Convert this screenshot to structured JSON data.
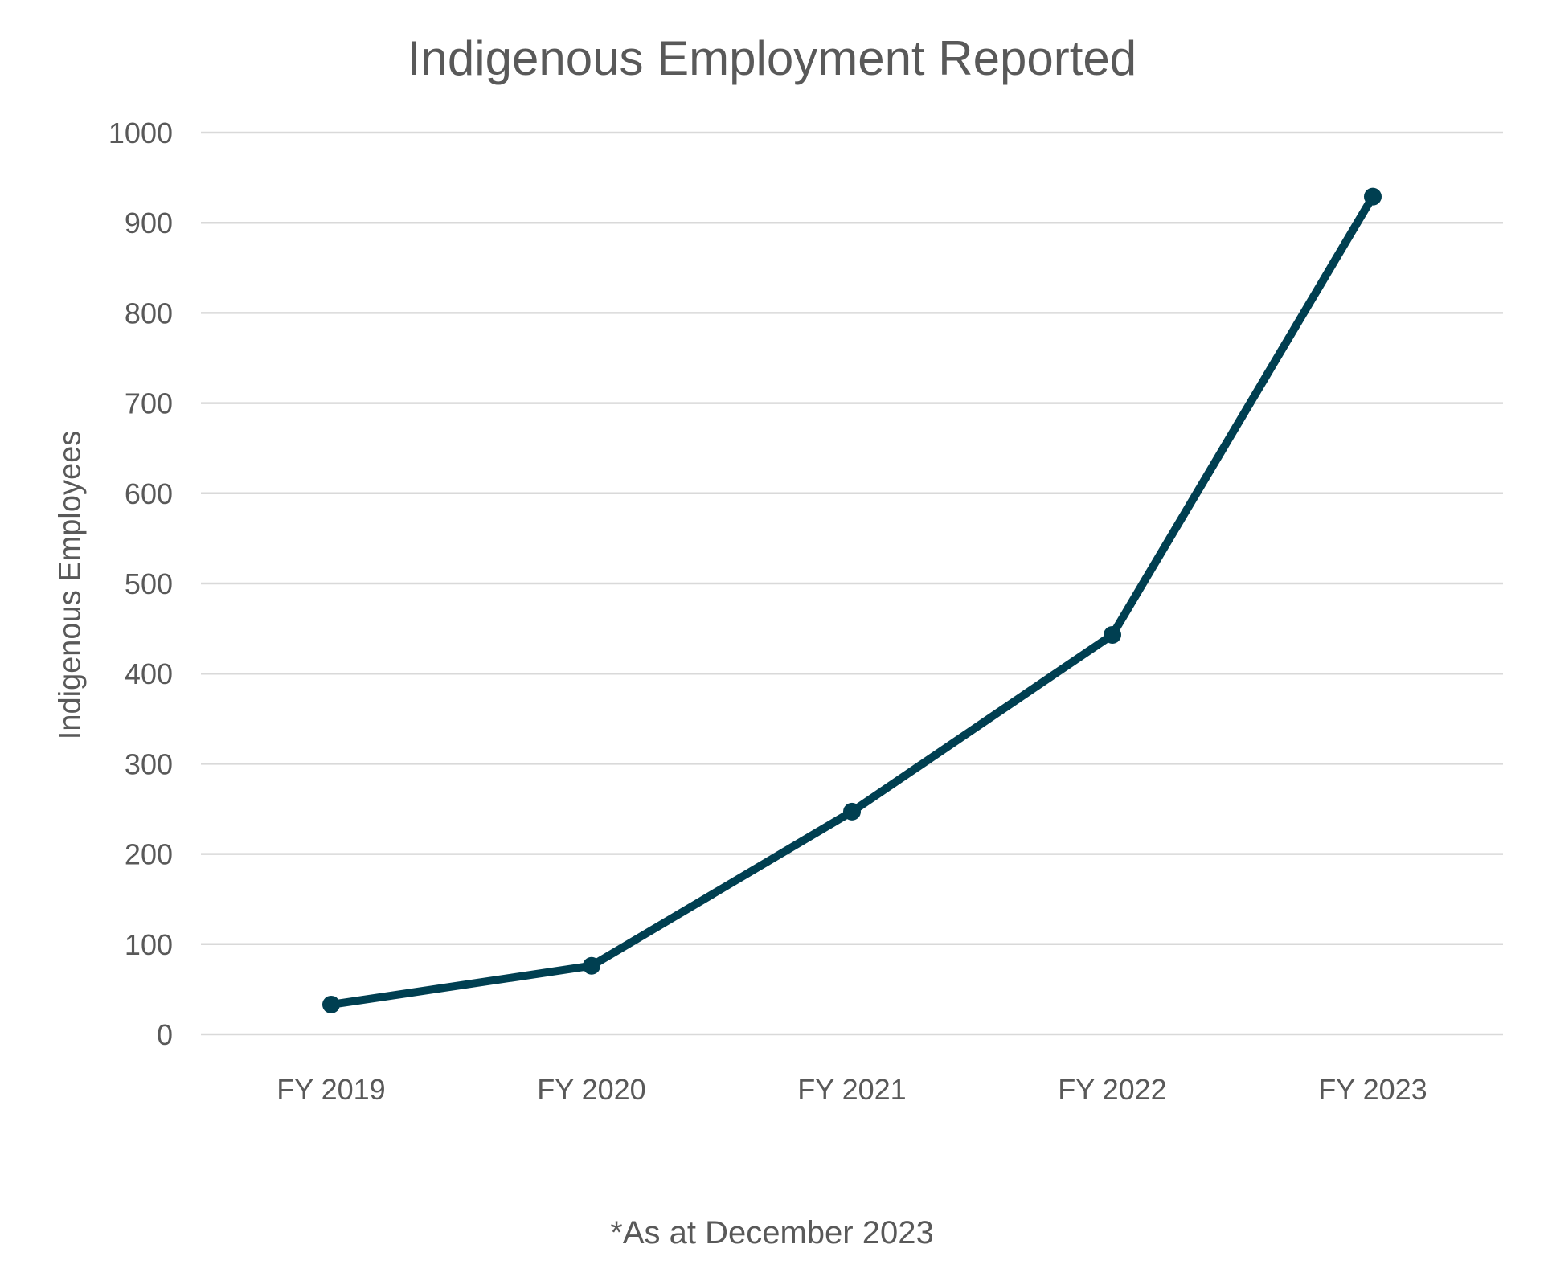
{
  "chart_data": {
    "type": "line",
    "title": "Indigenous Employment Reported",
    "xlabel": "",
    "ylabel": "Indigenous Employees",
    "categories": [
      "FY 2019",
      "FY 2020",
      "FY 2021",
      "FY 2022",
      "FY 2023"
    ],
    "series": [
      {
        "name": "Indigenous Employees",
        "values": [
          33,
          76,
          247,
          443,
          929
        ],
        "color": "#003F51"
      }
    ],
    "ylim": [
      0,
      1000
    ],
    "yticks": [
      0,
      100,
      200,
      300,
      400,
      500,
      600,
      700,
      800,
      900,
      1000
    ],
    "grid": true,
    "legend": "none",
    "annotations": [
      "*As at December 2023"
    ]
  },
  "footnote": "*As at December 2023",
  "colors": {
    "line": "#003F51",
    "grid": "#D9D9D9",
    "text": "#595959"
  }
}
